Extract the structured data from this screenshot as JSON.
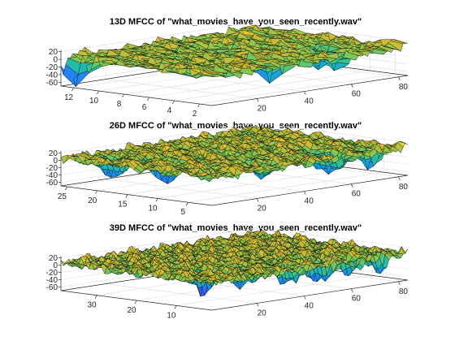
{
  "chart_data": [
    {
      "type": "surface",
      "title": "13D MFCC of \"what_movies_have_you_seen_recently.wav\"",
      "xlabel": "",
      "ylabel": "",
      "zlabel": "",
      "coefficients": 13,
      "frames": 84,
      "xlim": [
        1,
        84
      ],
      "ylim": [
        1,
        13
      ],
      "zlim": [
        -70,
        25
      ],
      "x_ticks": [
        20,
        40,
        60,
        80
      ],
      "y_ticks": [
        2,
        4,
        6,
        8,
        10,
        12
      ],
      "z_ticks": [
        20,
        0,
        -20,
        -40,
        -60
      ],
      "z_tick_labels": [
        "20",
        "0",
        "-20",
        "-40",
        "-60"
      ],
      "grid": true,
      "colormap": "parula",
      "dips": [
        {
          "x": 2,
          "y": 12,
          "z": -65
        },
        {
          "x": 36,
          "y": 3,
          "z": -45
        },
        {
          "x": 43,
          "y": 8,
          "z": -30
        },
        {
          "x": 58,
          "y": 2,
          "z": -40
        },
        {
          "x": 62,
          "y": 4,
          "z": -50
        },
        {
          "x": 70,
          "y": 5,
          "z": -40
        }
      ]
    },
    {
      "type": "surface",
      "title": "26D MFCC of \"what_movies_have_you_seen_recently.wav\"",
      "xlabel": "",
      "ylabel": "",
      "zlabel": "",
      "coefficients": 26,
      "frames": 84,
      "xlim": [
        1,
        84
      ],
      "ylim": [
        1,
        26
      ],
      "zlim": [
        -70,
        25
      ],
      "x_ticks": [
        20,
        40,
        60,
        80
      ],
      "y_ticks": [
        5,
        10,
        15,
        20,
        25
      ],
      "z_ticks": [
        20,
        0,
        -20,
        -40,
        -60
      ],
      "z_tick_labels": [
        "20",
        "0",
        "-20",
        "-40",
        "-60"
      ],
      "grid": true,
      "colormap": "parula",
      "dips": [
        {
          "x": 12,
          "y": 22,
          "z": -65
        },
        {
          "x": 18,
          "y": 15,
          "z": -60
        },
        {
          "x": 32,
          "y": 5,
          "z": -45
        },
        {
          "x": 40,
          "y": 12,
          "z": -40
        },
        {
          "x": 58,
          "y": 4,
          "z": -60
        },
        {
          "x": 62,
          "y": 6,
          "z": -55
        },
        {
          "x": 72,
          "y": 3,
          "z": -40
        }
      ]
    },
    {
      "type": "surface",
      "title": "39D MFCC of \"what_movies_have_you_seen_recently.wav\"",
      "xlabel": "",
      "ylabel": "",
      "zlabel": "",
      "coefficients": 39,
      "frames": 84,
      "xlim": [
        1,
        84
      ],
      "ylim": [
        1,
        39
      ],
      "zlim": [
        -70,
        25
      ],
      "x_ticks": [
        20,
        40,
        60,
        80
      ],
      "y_ticks": [
        10,
        20,
        30
      ],
      "z_ticks": [
        20,
        0,
        -20,
        -40,
        -60
      ],
      "z_tick_labels": [
        "20",
        "0",
        "-20",
        "-40",
        "-60"
      ],
      "grid": true,
      "colormap": "parula",
      "dips": [
        {
          "x": 18,
          "y": 13,
          "z": -65
        },
        {
          "x": 28,
          "y": 10,
          "z": -45
        },
        {
          "x": 40,
          "y": 5,
          "z": -50
        },
        {
          "x": 54,
          "y": 6,
          "z": -55
        },
        {
          "x": 64,
          "y": 4,
          "z": -45
        },
        {
          "x": 74,
          "y": 3,
          "z": -35
        }
      ]
    }
  ]
}
